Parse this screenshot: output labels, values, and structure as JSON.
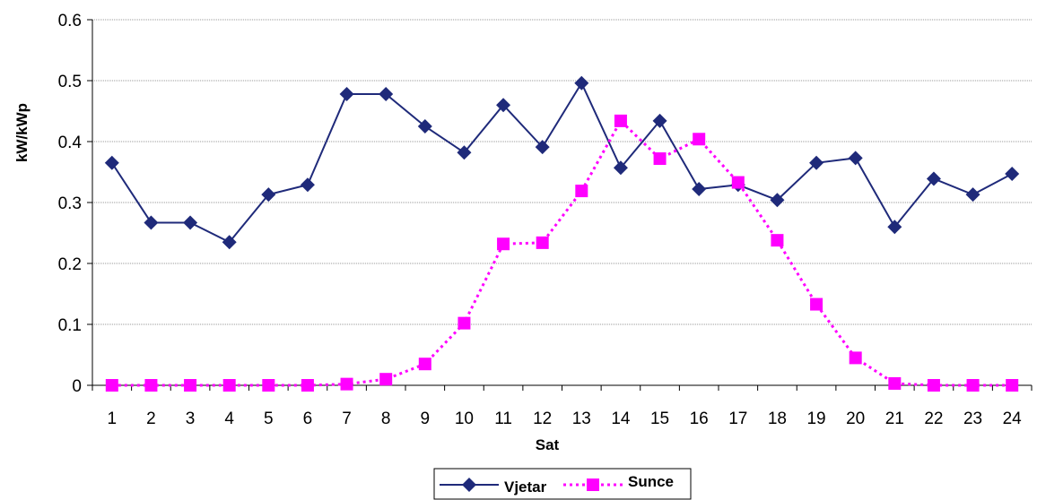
{
  "chart_data": {
    "type": "line",
    "title": "",
    "xlabel": "Sat",
    "ylabel": "kW/kWp",
    "categories": [
      "1",
      "2",
      "3",
      "4",
      "5",
      "6",
      "7",
      "8",
      "9",
      "10",
      "11",
      "12",
      "13",
      "14",
      "15",
      "16",
      "17",
      "18",
      "19",
      "20",
      "21",
      "22",
      "23",
      "24"
    ],
    "ylim": [
      0,
      0.6
    ],
    "yticks": [
      "0",
      "0.1",
      "0.2",
      "0.3",
      "0.4",
      "0.5",
      "0.6"
    ],
    "grid": true,
    "legend_position": "bottom",
    "series": [
      {
        "name": "Vjetar",
        "color": "#1f2a7a",
        "marker": "diamond",
        "line_style": "solid",
        "values": [
          0.365,
          0.267,
          0.267,
          0.235,
          0.313,
          0.329,
          0.478,
          0.478,
          0.425,
          0.382,
          0.46,
          0.391,
          0.496,
          0.357,
          0.434,
          0.322,
          0.329,
          0.304,
          0.365,
          0.373,
          0.26,
          0.339,
          0.313,
          0.347
        ]
      },
      {
        "name": "Sunce",
        "color": "#ff00ff",
        "marker": "square",
        "line_style": "dotted",
        "values": [
          0,
          0,
          0,
          0,
          0,
          0,
          0.002,
          0.01,
          0.035,
          0.102,
          0.232,
          0.234,
          0.319,
          0.434,
          0.372,
          0.404,
          0.333,
          0.238,
          0.133,
          0.045,
          0.003,
          0,
          0,
          0
        ]
      }
    ]
  }
}
